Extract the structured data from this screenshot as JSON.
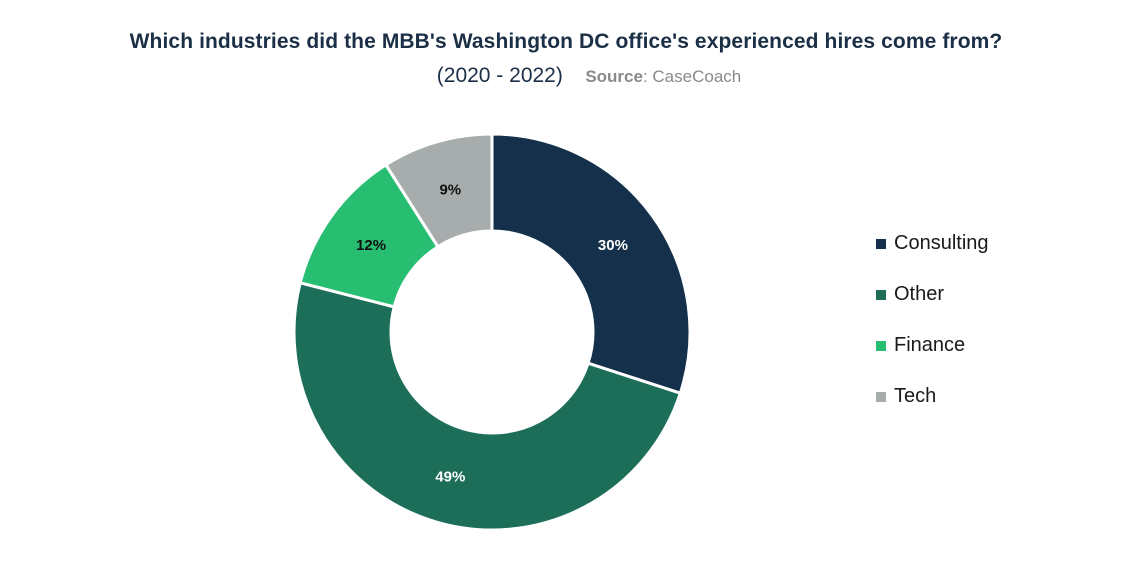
{
  "header": {
    "title": "Which industries did the MBB's Washington DC office's experienced hires come from?",
    "period": "(2020 - 2022)",
    "source_label": "Source",
    "source_value": ": CaseCoach"
  },
  "chart_data": {
    "type": "pie",
    "donut": true,
    "title": "Which industries did the MBB's Washington DC office's experienced hires come from?",
    "subtitle": "(2020 - 2022)",
    "source": "CaseCoach",
    "unit": "%",
    "legend_position": "right",
    "slices": [
      {
        "label": "Consulting",
        "value": 30,
        "display": "30%",
        "color": "#14304a",
        "label_color": "#ffffff"
      },
      {
        "label": "Other",
        "value": 49,
        "display": "49%",
        "color": "#1d6e59",
        "label_color": "#ffffff"
      },
      {
        "label": "Finance",
        "value": 12,
        "display": "12%",
        "color": "#27be72",
        "label_color": "#111111"
      },
      {
        "label": "Tech",
        "value": 9,
        "display": "9%",
        "color": "#a7acac",
        "label_color": "#111111"
      }
    ]
  }
}
